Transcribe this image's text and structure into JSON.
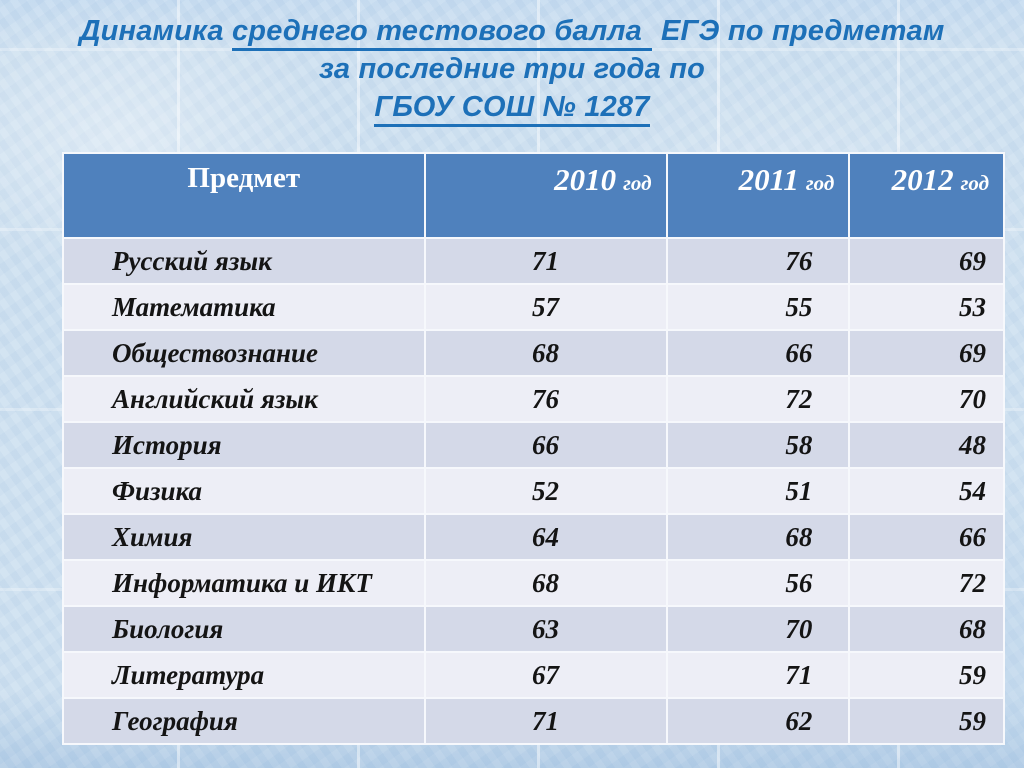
{
  "title": {
    "line1_part1": "Динамика",
    "line1_underlined": "среднего тестового балла",
    "line1_part2": "ЕГЭ по предметам",
    "line2": "за последние три года по",
    "line3_underlined": "ГБОУ СОШ № 1287"
  },
  "table": {
    "headers": {
      "subject": "Предмет",
      "years": [
        "2010",
        "2011",
        "2012"
      ],
      "year_suffix": "год"
    },
    "rows": [
      {
        "subject": "Русский язык",
        "values": [
          "71",
          "76",
          "69"
        ]
      },
      {
        "subject": "Математика",
        "values": [
          "57",
          "55",
          "53"
        ]
      },
      {
        "subject": "Обществознание",
        "values": [
          "68",
          "66",
          "69"
        ]
      },
      {
        "subject": "Английский язык",
        "values": [
          "76",
          "72",
          "70"
        ]
      },
      {
        "subject": "История",
        "values": [
          "66",
          "58",
          "48"
        ]
      },
      {
        "subject": "Физика",
        "values": [
          "52",
          "51",
          "54"
        ]
      },
      {
        "subject": "Химия",
        "values": [
          "64",
          "68",
          "66"
        ]
      },
      {
        "subject": "Информатика и ИКТ",
        "values": [
          "68",
          "56",
          "72"
        ]
      },
      {
        "subject": "Биология",
        "values": [
          "63",
          "70",
          "68"
        ]
      },
      {
        "subject": "Литература",
        "values": [
          "67",
          "71",
          "59"
        ]
      },
      {
        "subject": "География",
        "values": [
          "71",
          "62",
          "59"
        ]
      }
    ]
  },
  "colors": {
    "title_text": "#1d70b8",
    "header_bg": "#4f81bd",
    "header_text": "#ffffff",
    "row_odd_bg": "#d4d9e8",
    "row_even_bg": "#edeef6",
    "cell_text": "#141414",
    "grid_line": "#f6f8fc",
    "slide_bg": "#cfe1f0"
  },
  "chart_data": {
    "type": "table",
    "title": "Динамика среднего тестового балла ЕГЭ по предметам за последние три года по ГБОУ СОШ № 1287",
    "categories": [
      "Русский язык",
      "Математика",
      "Обществознание",
      "Английский язык",
      "История",
      "Физика",
      "Химия",
      "Информатика и ИКТ",
      "Биология",
      "Литература",
      "География"
    ],
    "series": [
      {
        "name": "2010 год",
        "values": [
          71,
          57,
          68,
          76,
          66,
          52,
          64,
          68,
          63,
          67,
          71
        ]
      },
      {
        "name": "2011 год",
        "values": [
          76,
          55,
          66,
          72,
          58,
          51,
          68,
          56,
          70,
          71,
          62
        ]
      },
      {
        "name": "2012 год",
        "values": [
          69,
          53,
          69,
          70,
          48,
          54,
          66,
          72,
          68,
          59,
          59
        ]
      }
    ]
  }
}
